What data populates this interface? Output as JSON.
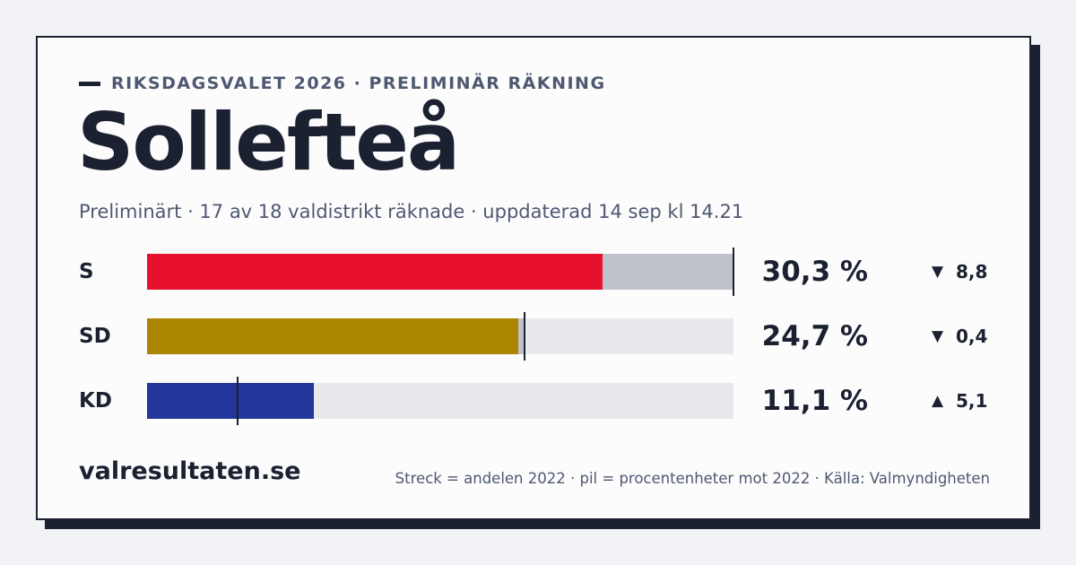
{
  "header": {
    "kicker": "RIKSDAGSVALET 2026 · PRELIMINÄR RÄKNING",
    "title": "Sollefteå",
    "subtitle": "Preliminärt · 17 av 18 valdistrikt räknade · uppdaterad 14 sep kl 14.21"
  },
  "footer": {
    "brand": "valresultaten.se",
    "note": "Streck = andelen 2022 · pil = procentenheter mot 2022 · Källa: Valmyndigheten"
  },
  "colors": {
    "S": "#e8112d",
    "SD": "#ac8600",
    "KD": "#23349a",
    "previous_share_overflow": "#bfc2ca",
    "track": "#e8e9ed",
    "ink": "#1b2130"
  },
  "chart_data": {
    "type": "bar",
    "orientation": "horizontal",
    "xlim": [
      0,
      39
    ],
    "categories": [
      "S",
      "SD",
      "KD"
    ],
    "series": [
      {
        "values": [
          30.3,
          24.7,
          11.1
        ],
        "value_labels": [
          "30,3 %",
          "24,7 %",
          "11,1 %"
        ]
      }
    ],
    "previous_share_2022": [
      39.1,
      25.1,
      6.0
    ],
    "change_points": [
      -8.8,
      -0.4,
      5.1
    ],
    "change_labels": [
      "8,8",
      "0,4",
      "5,1"
    ],
    "change_icons": [
      "arrow-down-icon",
      "arrow-down-icon",
      "arrow-up-icon"
    ]
  }
}
